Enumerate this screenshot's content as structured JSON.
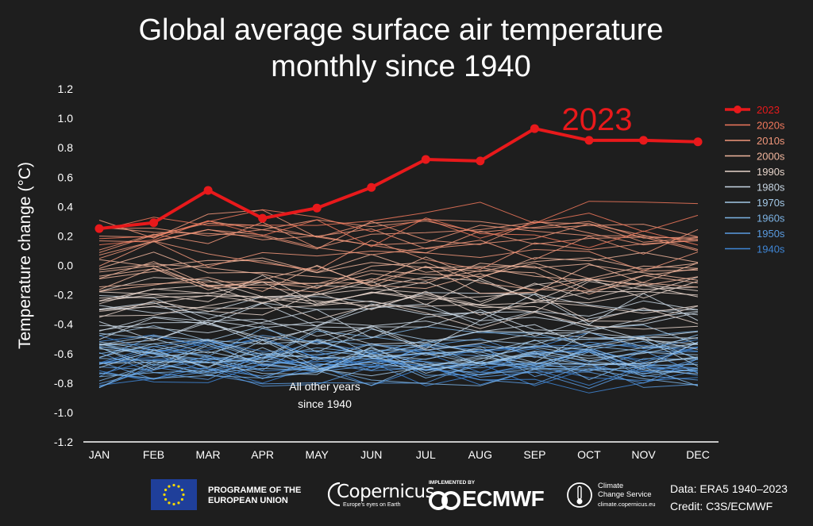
{
  "chart_data": {
    "type": "line",
    "title": "Global average surface air temperature\nmonthly since 1940",
    "title_lines": [
      "Global average surface air temperature",
      "monthly since 1940"
    ],
    "ylabel": "Temperature change (°C)",
    "xlabel": "",
    "categories": [
      "JAN",
      "FEB",
      "MAR",
      "APR",
      "MAY",
      "JUN",
      "JUL",
      "AUG",
      "SEP",
      "OCT",
      "NOV",
      "DEC"
    ],
    "ylim": [
      -1.2,
      1.2
    ],
    "yticks": [
      "1.2",
      "1.0",
      "0.8",
      "0.6",
      "0.4",
      "0.2",
      "0.0",
      "-0.2",
      "-0.4",
      "-0.6",
      "-0.8",
      "-1.0",
      "-1.2"
    ],
    "grid": false,
    "legend_position": "right",
    "highlight_series": {
      "name": "2023",
      "values": [
        0.25,
        0.29,
        0.51,
        0.32,
        0.39,
        0.53,
        0.72,
        0.71,
        0.93,
        0.85,
        0.85,
        0.84
      ],
      "color": "#e8191b",
      "annotation": "2023"
    },
    "annotation_other": [
      "All other years",
      "since 1940"
    ],
    "legend": [
      {
        "label": "2023",
        "color": "#e8191b",
        "marker": true
      },
      {
        "label": "2020s",
        "color": "#f0785c"
      },
      {
        "label": "2010s",
        "color": "#f1967a"
      },
      {
        "label": "2000s",
        "color": "#f0b59c"
      },
      {
        "label": "1990s",
        "color": "#e6d4ca"
      },
      {
        "label": "1980s",
        "color": "#c8d6e3"
      },
      {
        "label": "1970s",
        "color": "#a3c8e6"
      },
      {
        "label": "1960s",
        "color": "#7cb3e4"
      },
      {
        "label": "1950s",
        "color": "#5a9be0"
      },
      {
        "label": "1940s",
        "color": "#3f86d6"
      }
    ],
    "decade_bands": [
      {
        "decade": "1940s",
        "years": 10,
        "mean": -0.66,
        "spread": 0.12,
        "color": "#3f86d6"
      },
      {
        "decade": "1950s",
        "years": 10,
        "mean": -0.68,
        "spread": 0.12,
        "color": "#5a9be0"
      },
      {
        "decade": "1960s",
        "years": 10,
        "mean": -0.63,
        "spread": 0.11,
        "color": "#7cb3e4"
      },
      {
        "decade": "1970s",
        "years": 10,
        "mean": -0.6,
        "spread": 0.11,
        "color": "#a3c8e6"
      },
      {
        "decade": "1980s",
        "years": 10,
        "mean": -0.4,
        "spread": 0.11,
        "color": "#c8d6e3"
      },
      {
        "decade": "1990s",
        "years": 10,
        "mean": -0.25,
        "spread": 0.12,
        "color": "#e6d4ca"
      },
      {
        "decade": "2000s",
        "years": 10,
        "mean": -0.02,
        "spread": 0.1,
        "color": "#f0b59c"
      },
      {
        "decade": "2010s",
        "years": 10,
        "mean": 0.17,
        "spread": 0.12,
        "color": "#f1967a"
      },
      {
        "decade": "2020s",
        "years": 3,
        "mean": 0.3,
        "spread": 0.09,
        "color": "#f0785c"
      }
    ]
  },
  "footer": {
    "eu_text_lines": [
      "PROGRAMME OF THE",
      "EUROPEAN UNION"
    ],
    "copernicus_name": "Copernicus",
    "copernicus_tagline": "Europe's eyes on Earth",
    "ecmwf_implemented": "IMPLEMENTED BY",
    "ecmwf_name": "ECMWF",
    "ccs_name_lines": [
      "Climate",
      "Change Service"
    ],
    "ccs_url": "climate.copernicus.eu",
    "data_source": "Data: ERA5 1940–2023",
    "credit": "Credit: C3S/ECMWF"
  }
}
